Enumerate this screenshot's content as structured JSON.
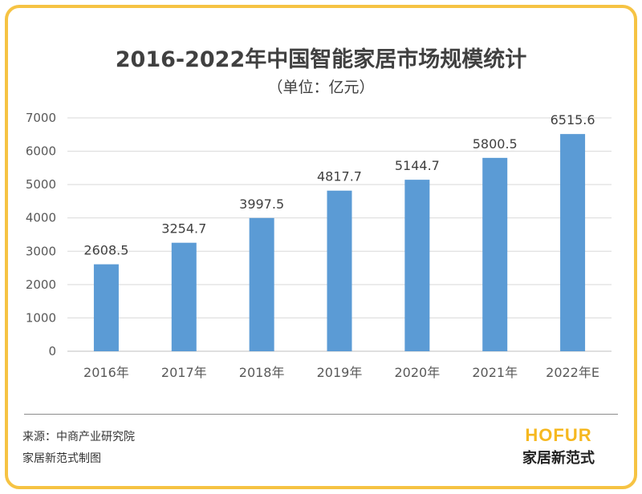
{
  "title": "2016-2022年中国智能家居市场规模统计",
  "subtitle": "（单位：亿元）",
  "chart_data": {
    "type": "bar",
    "categories": [
      "2016年",
      "2017年",
      "2018年",
      "2019年",
      "2020年",
      "2021年",
      "2022年E"
    ],
    "values": [
      2608.5,
      3254.7,
      3997.5,
      4817.7,
      5144.7,
      5800.5,
      6515.6
    ],
    "value_labels": [
      "2608.5",
      "3254.7",
      "3997.5",
      "4817.7",
      "5144.7",
      "5800.5",
      "6515.6"
    ],
    "y_ticks": [
      0,
      1000,
      2000,
      3000,
      4000,
      5000,
      6000,
      7000
    ],
    "ylim": [
      0,
      7000
    ],
    "grid": true,
    "bar_color": "#5b9bd5",
    "xlabel": "",
    "ylabel": ""
  },
  "footer": {
    "source": "来源：中商产业研究院",
    "credit": "家居新范式制图"
  },
  "logo": {
    "mark": "HOFUR",
    "name": "家居新范式",
    "color": "#f6b820"
  },
  "frame_color": "#f6c343"
}
